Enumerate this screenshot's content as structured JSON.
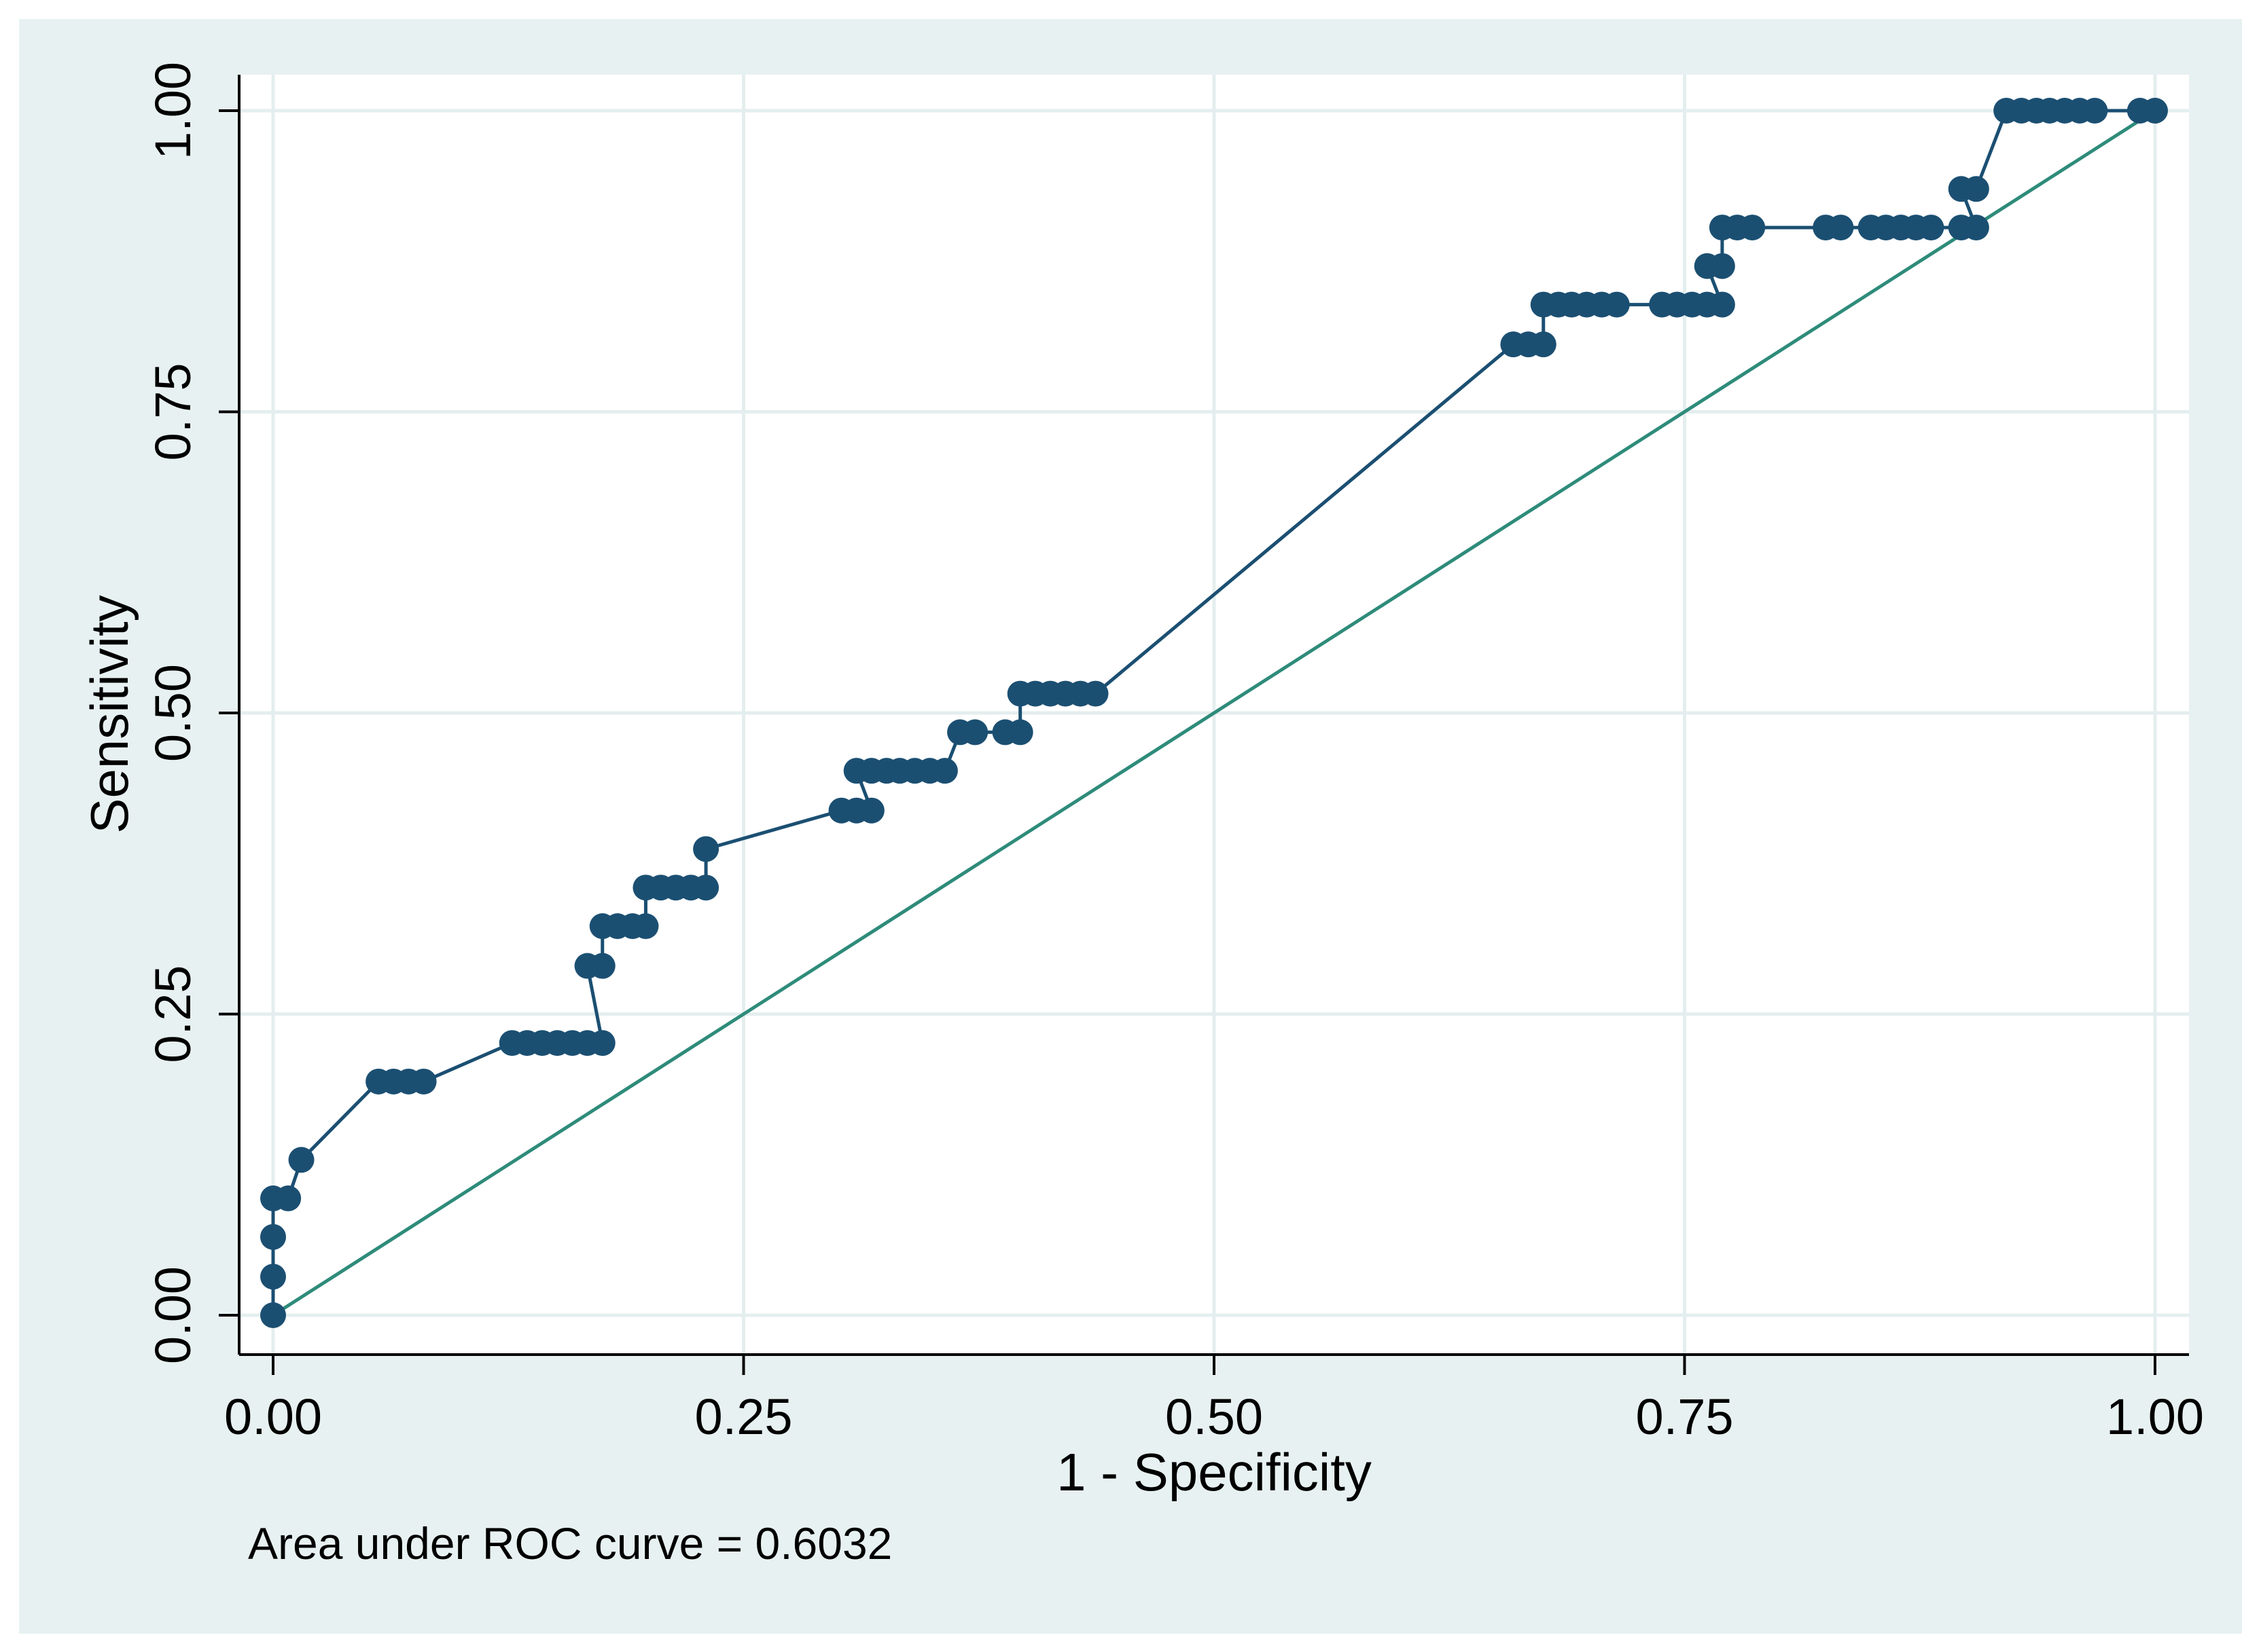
{
  "colors": {
    "outer_background": "#e8f1f1",
    "plot_background": "#ffffff",
    "gridline": "#e4eeee",
    "roc_curve": "#1b4f72",
    "reference_line": "#2e8b7a",
    "axis": "#000000"
  },
  "chart_data": {
    "type": "line",
    "title": "",
    "xlabel": "1 - Specificity",
    "ylabel": "Sensitivity",
    "xlim": [
      0,
      1
    ],
    "ylim": [
      0,
      1
    ],
    "x_ticks": [
      "0.00",
      "0.25",
      "0.50",
      "0.75",
      "1.00"
    ],
    "y_ticks": [
      "0.00",
      "0.25",
      "0.50",
      "0.75",
      "1.00"
    ],
    "grid": true,
    "legend": "none",
    "note": "Area under ROC curve = 0.6032",
    "series": [
      {
        "kind": "roc_curve",
        "markers": true,
        "points": [
          [
            0.0,
            0.0
          ],
          [
            0.0,
            0.032
          ],
          [
            0.0,
            0.065
          ],
          [
            0.0,
            0.097
          ],
          [
            0.008,
            0.097
          ],
          [
            0.015,
            0.129
          ],
          [
            0.056,
            0.194
          ],
          [
            0.064,
            0.194
          ],
          [
            0.072,
            0.194
          ],
          [
            0.08,
            0.194
          ],
          [
            0.127,
            0.226
          ],
          [
            0.135,
            0.226
          ],
          [
            0.143,
            0.226
          ],
          [
            0.151,
            0.226
          ],
          [
            0.159,
            0.226
          ],
          [
            0.167,
            0.226
          ],
          [
            0.175,
            0.226
          ],
          [
            0.167,
            0.29
          ],
          [
            0.175,
            0.29
          ],
          [
            0.175,
            0.323
          ],
          [
            0.183,
            0.323
          ],
          [
            0.191,
            0.323
          ],
          [
            0.198,
            0.323
          ],
          [
            0.198,
            0.355
          ],
          [
            0.206,
            0.355
          ],
          [
            0.214,
            0.355
          ],
          [
            0.222,
            0.355
          ],
          [
            0.23,
            0.355
          ],
          [
            0.23,
            0.387
          ],
          [
            0.302,
            0.419
          ],
          [
            0.31,
            0.419
          ],
          [
            0.318,
            0.419
          ],
          [
            0.31,
            0.452
          ],
          [
            0.318,
            0.452
          ],
          [
            0.326,
            0.452
          ],
          [
            0.333,
            0.452
          ],
          [
            0.341,
            0.452
          ],
          [
            0.349,
            0.452
          ],
          [
            0.357,
            0.452
          ],
          [
            0.365,
            0.484
          ],
          [
            0.373,
            0.484
          ],
          [
            0.389,
            0.484
          ],
          [
            0.397,
            0.484
          ],
          [
            0.397,
            0.516
          ],
          [
            0.405,
            0.516
          ],
          [
            0.413,
            0.516
          ],
          [
            0.421,
            0.516
          ],
          [
            0.429,
            0.516
          ],
          [
            0.437,
            0.516
          ],
          [
            0.659,
            0.806
          ],
          [
            0.667,
            0.806
          ],
          [
            0.675,
            0.806
          ],
          [
            0.675,
            0.839
          ],
          [
            0.683,
            0.839
          ],
          [
            0.69,
            0.839
          ],
          [
            0.698,
            0.839
          ],
          [
            0.706,
            0.839
          ],
          [
            0.714,
            0.839
          ],
          [
            0.738,
            0.839
          ],
          [
            0.746,
            0.839
          ],
          [
            0.754,
            0.839
          ],
          [
            0.762,
            0.839
          ],
          [
            0.77,
            0.839
          ],
          [
            0.762,
            0.871
          ],
          [
            0.77,
            0.871
          ],
          [
            0.77,
            0.903
          ],
          [
            0.778,
            0.903
          ],
          [
            0.786,
            0.903
          ],
          [
            0.825,
            0.903
          ],
          [
            0.833,
            0.903
          ],
          [
            0.849,
            0.903
          ],
          [
            0.857,
            0.903
          ],
          [
            0.865,
            0.903
          ],
          [
            0.873,
            0.903
          ],
          [
            0.881,
            0.903
          ],
          [
            0.897,
            0.903
          ],
          [
            0.905,
            0.903
          ],
          [
            0.897,
            0.935
          ],
          [
            0.905,
            0.935
          ],
          [
            0.921,
            1.0
          ],
          [
            0.929,
            1.0
          ],
          [
            0.937,
            1.0
          ],
          [
            0.944,
            1.0
          ],
          [
            0.952,
            1.0
          ],
          [
            0.96,
            1.0
          ],
          [
            0.968,
            1.0
          ],
          [
            0.992,
            1.0
          ],
          [
            1.0,
            1.0
          ]
        ]
      },
      {
        "kind": "reference_line",
        "markers": false,
        "points": [
          [
            0,
            0
          ],
          [
            1,
            1
          ]
        ]
      }
    ]
  }
}
